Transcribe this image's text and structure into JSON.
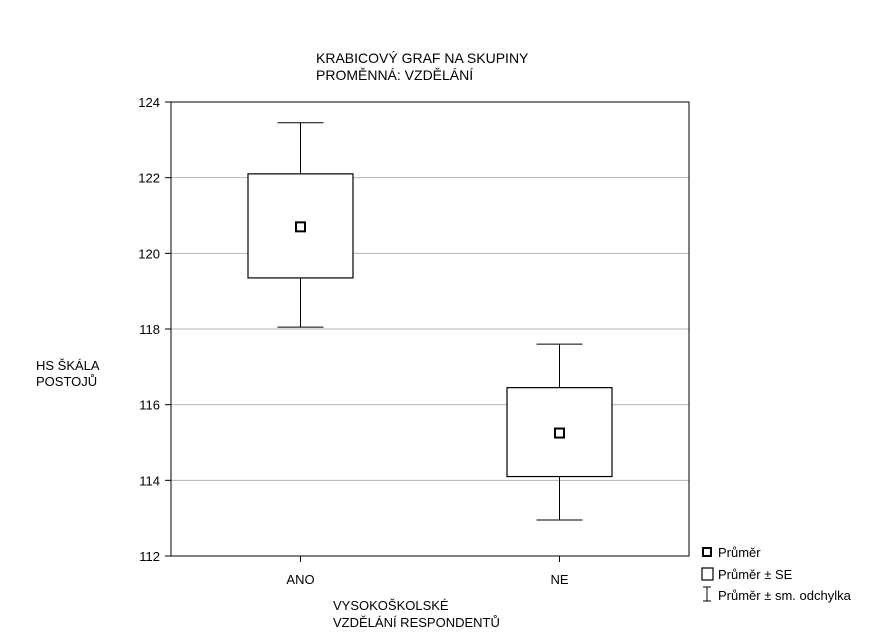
{
  "chart_data": {
    "type": "box",
    "title_lines": [
      "KRABICOVÝ GRAF NA SKUPINY",
      "PROMĚNNÁ: VZDĚLÁNÍ"
    ],
    "ylabel_lines": [
      "HS ŠKÁLA",
      "POSTOJŮ"
    ],
    "xlabel_lines": [
      "VYSOKOŠKOLSKÉ",
      "VZDĚLÁNÍ RESPONDENTŮ"
    ],
    "ylim": [
      112,
      124
    ],
    "yticks": [
      112,
      114,
      116,
      118,
      120,
      122,
      124
    ],
    "grid": true,
    "categories": [
      "ANO",
      "NE"
    ],
    "groups": [
      {
        "category": "ANO",
        "mean": 120.7,
        "se_low": 119.35,
        "se_high": 122.1,
        "sd_low": 118.05,
        "sd_high": 123.45
      },
      {
        "category": "NE",
        "mean": 115.25,
        "se_low": 114.1,
        "se_high": 116.45,
        "sd_low": 112.95,
        "sd_high": 117.6
      }
    ],
    "legend": {
      "position": "bottom-right",
      "entries": [
        {
          "symbol": "mean",
          "label": "Průměr"
        },
        {
          "symbol": "box",
          "label": "Průměr ± SE"
        },
        {
          "symbol": "whisker",
          "label": "Průměr ± sm. odchylka"
        }
      ]
    }
  }
}
